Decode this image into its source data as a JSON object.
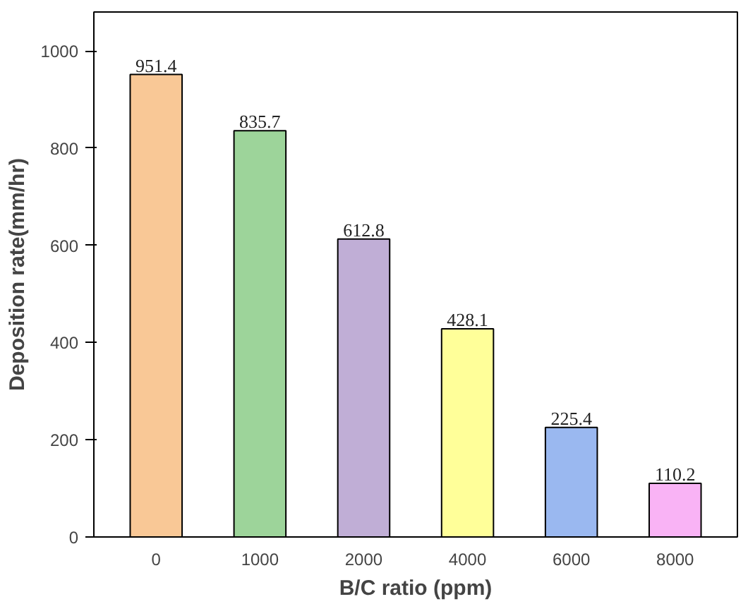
{
  "chart_data": {
    "type": "bar",
    "xlabel": "B/C ratio (ppm)",
    "ylabel": "Deposition rate(mm/hr)",
    "categories": [
      "0",
      "1000",
      "2000",
      "4000",
      "6000",
      "8000"
    ],
    "values": [
      951.4,
      835.7,
      612.8,
      428.1,
      225.4,
      110.2
    ],
    "colors": [
      "#f9c896",
      "#9dd49a",
      "#c0aed6",
      "#ffff99",
      "#9ab8f0",
      "#f9b3f5"
    ],
    "ylim": [
      0,
      1080
    ],
    "yticks": [
      0,
      200,
      400,
      600,
      800,
      1000
    ],
    "data_labels": true,
    "grid": false
  }
}
